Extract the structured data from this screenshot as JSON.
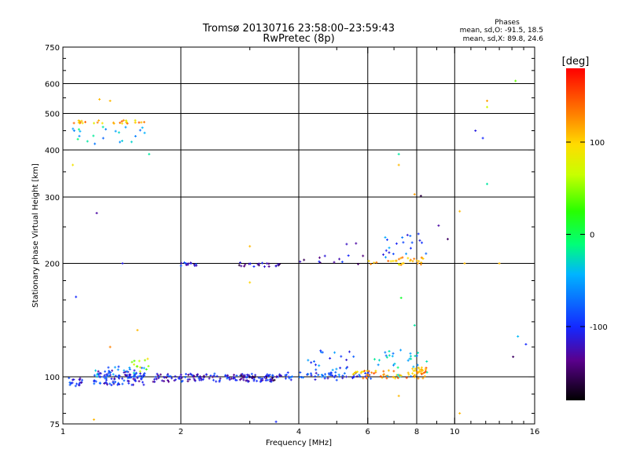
{
  "chart_data": {
    "type": "scatter",
    "title": "Tromsø 20130716 23:58:00–23:59:43",
    "subtitle": "RwPretec (8p)",
    "xlabel": "Frequency [MHz]",
    "ylabel": "Stationary phase Virtual Height [km]",
    "x_scale": "log",
    "y_scale": "log",
    "xlim": [
      1,
      16
    ],
    "ylim": [
      75,
      750
    ],
    "x_ticks": [
      1,
      2,
      4,
      6,
      8,
      10,
      16
    ],
    "y_ticks": [
      75,
      100,
      200,
      300,
      400,
      500,
      600,
      750
    ],
    "x_gridlines": [
      2,
      4,
      6,
      8,
      10
    ],
    "y_gridlines": [
      100,
      200,
      300,
      400,
      500,
      600
    ],
    "phase_info": {
      "title": "Phases",
      "line_o": "mean, sd,O:  -91.5, 18.5",
      "line_x": "mean, sd,X:  89.8, 24.6"
    },
    "colorbar": {
      "label": "[deg]",
      "range": [
        -180,
        180
      ],
      "ticks": [
        100,
        0,
        -100
      ]
    },
    "clusters": [
      {
        "x": [
          1.02,
          1.12
        ],
        "y": [
          94,
          100
        ],
        "n": 20,
        "phase": -100
      },
      {
        "x": [
          1.2,
          1.62
        ],
        "y": [
          95,
          104
        ],
        "n": 95,
        "phase": -105
      },
      {
        "x": [
          1.2,
          1.62
        ],
        "y": [
          100,
          107
        ],
        "n": 25,
        "phase": -60
      },
      {
        "x": [
          1.5,
          1.66
        ],
        "y": [
          102,
          112
        ],
        "n": 12,
        "phase": 60
      },
      {
        "x": [
          1.7,
          3.6
        ],
        "y": [
          97,
          102
        ],
        "n": 140,
        "phase": -110
      },
      {
        "x": [
          2.8,
          3.6
        ],
        "y": [
          98,
          101
        ],
        "n": 20,
        "phase": -140
      },
      {
        "x": [
          3.6,
          6.2
        ],
        "y": [
          98,
          103
        ],
        "n": 60,
        "phase": -90
      },
      {
        "x": [
          4.2,
          5.6
        ],
        "y": [
          100,
          118
        ],
        "n": 25,
        "phase": -80
      },
      {
        "x": [
          5.5,
          8.5
        ],
        "y": [
          99,
          104
        ],
        "n": 55,
        "phase": 120
      },
      {
        "x": [
          6.2,
          8.5
        ],
        "y": [
          100,
          118
        ],
        "n": 30,
        "phase": -40
      },
      {
        "x": [
          7.8,
          8.6
        ],
        "y": [
          102,
          106
        ],
        "n": 20,
        "phase": 115
      },
      {
        "x": [
          1.04,
          1.62
        ],
        "y": [
          470,
          480
        ],
        "n": 30,
        "phase": 115
      },
      {
        "x": [
          1.04,
          1.62
        ],
        "y": [
          415,
          462
        ],
        "n": 22,
        "phase": -40
      },
      {
        "x": [
          1.98,
          2.2
        ],
        "y": [
          197,
          201
        ],
        "n": 14,
        "phase": -110
      },
      {
        "x": [
          2.8,
          3.6
        ],
        "y": [
          196,
          201
        ],
        "n": 22,
        "phase": -130
      },
      {
        "x": [
          4.0,
          6.0
        ],
        "y": [
          199,
          210
        ],
        "n": 12,
        "phase": -120
      },
      {
        "x": [
          6.0,
          8.6
        ],
        "y": [
          198,
          208
        ],
        "n": 30,
        "phase": 110
      },
      {
        "x": [
          6.5,
          8.5
        ],
        "y": [
          205,
          240
        ],
        "n": 20,
        "phase": -80
      }
    ],
    "isolated_points": [
      {
        "x": 1.06,
        "y": 365,
        "phase": 90
      },
      {
        "x": 1.22,
        "y": 272,
        "phase": -130
      },
      {
        "x": 1.08,
        "y": 163,
        "phase": -100
      },
      {
        "x": 1.24,
        "y": 545,
        "phase": 110
      },
      {
        "x": 1.32,
        "y": 540,
        "phase": 110
      },
      {
        "x": 1.66,
        "y": 390,
        "phase": -20
      },
      {
        "x": 1.42,
        "y": 200,
        "phase": -110
      },
      {
        "x": 1.55,
        "y": 133,
        "phase": 110
      },
      {
        "x": 1.32,
        "y": 120,
        "phase": 130
      },
      {
        "x": 1.2,
        "y": 77,
        "phase": 110
      },
      {
        "x": 3.0,
        "y": 222,
        "phase": 110
      },
      {
        "x": 3.0,
        "y": 178,
        "phase": 100
      },
      {
        "x": 3.5,
        "y": 76,
        "phase": -100
      },
      {
        "x": 5.3,
        "y": 225,
        "phase": -120
      },
      {
        "x": 5.6,
        "y": 226,
        "phase": -130
      },
      {
        "x": 7.2,
        "y": 390,
        "phase": -20
      },
      {
        "x": 7.2,
        "y": 365,
        "phase": 110
      },
      {
        "x": 7.9,
        "y": 305,
        "phase": 120
      },
      {
        "x": 8.2,
        "y": 302,
        "phase": -160
      },
      {
        "x": 9.1,
        "y": 252,
        "phase": -130
      },
      {
        "x": 9.6,
        "y": 232,
        "phase": -150
      },
      {
        "x": 7.3,
        "y": 162,
        "phase": 10
      },
      {
        "x": 7.9,
        "y": 137,
        "phase": -20
      },
      {
        "x": 7.2,
        "y": 89,
        "phase": 110
      },
      {
        "x": 10.3,
        "y": 80,
        "phase": 110
      },
      {
        "x": 10.3,
        "y": 275,
        "phase": 110
      },
      {
        "x": 11.3,
        "y": 450,
        "phase": -110
      },
      {
        "x": 11.8,
        "y": 430,
        "phase": -100
      },
      {
        "x": 12.1,
        "y": 540,
        "phase": 120
      },
      {
        "x": 12.1,
        "y": 520,
        "phase": 70
      },
      {
        "x": 12.1,
        "y": 325,
        "phase": -20
      },
      {
        "x": 14.3,
        "y": 610,
        "phase": 40
      },
      {
        "x": 14.5,
        "y": 128,
        "phase": -40
      },
      {
        "x": 15.2,
        "y": 122,
        "phase": -100
      },
      {
        "x": 14.1,
        "y": 113,
        "phase": -150
      },
      {
        "x": 10.6,
        "y": 200,
        "phase": 110
      },
      {
        "x": 13.0,
        "y": 200,
        "phase": 110
      }
    ]
  }
}
